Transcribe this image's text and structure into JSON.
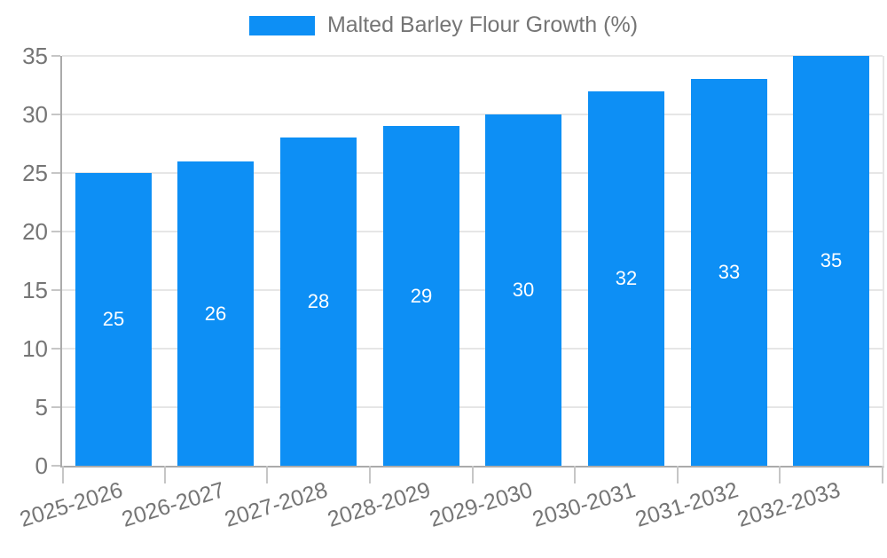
{
  "chart_data": {
    "type": "bar",
    "title": "",
    "legend": {
      "position": "top",
      "label": "Malted Barley Flour Growth (%)"
    },
    "categories": [
      "2025-2026",
      "2026-2027",
      "2027-2028",
      "2028-2029",
      "2029-2030",
      "2030-2031",
      "2031-2032",
      "2032-2033"
    ],
    "series": [
      {
        "name": "Malted Barley Flour Growth (%)",
        "color": "#0D8FF5",
        "values": [
          25,
          26,
          28,
          29,
          30,
          32,
          33,
          35
        ]
      }
    ],
    "xlabel": "",
    "ylabel": "",
    "ylim": [
      0,
      35
    ],
    "yticks": [
      0,
      5,
      10,
      15,
      20,
      25,
      30,
      35
    ],
    "grid": "horizontal",
    "bar_labels_shown": true,
    "bar_label_color": "#ffffff",
    "axis_text_color": "#757575",
    "gridline_color": "#e6e6e6",
    "axis_line_color": "#ababab"
  }
}
